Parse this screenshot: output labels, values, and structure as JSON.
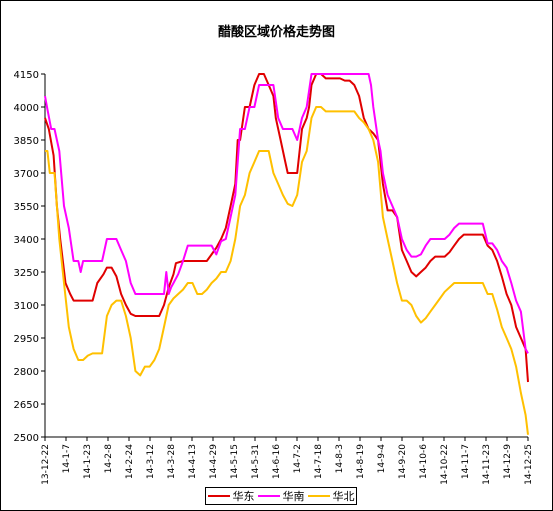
{
  "chart_data": {
    "type": "line",
    "title": "醋酸区域价格走势图",
    "xlabel": "",
    "ylabel": "",
    "ylim": [
      2500,
      4150
    ],
    "yticks": [
      2500,
      2650,
      2800,
      2950,
      3100,
      3250,
      3400,
      3550,
      3700,
      3850,
      4000,
      4150
    ],
    "grid": false,
    "legend_position": "bottom",
    "x_tick_labels": [
      "13-12-22",
      "14-1-7",
      "14-1-23",
      "14-2-8",
      "14-2-24",
      "14-3-12",
      "14-3-28",
      "14-4-13",
      "14-4-29",
      "14-5-15",
      "14-5-31",
      "14-6-16",
      "14-7-2",
      "14-7-18",
      "14-8-3",
      "14-8-19",
      "14-9-4",
      "14-9-20",
      "14-10-6",
      "14-10-22",
      "14-11-7",
      "14-11-23",
      "14-12-9",
      "14-12-25"
    ],
    "series": [
      {
        "name": "华东",
        "color": "#e00000",
        "points": [
          [
            0,
            3950
          ],
          [
            1.6,
            3900
          ],
          [
            3.6,
            3780
          ],
          [
            5,
            3550
          ],
          [
            6.4,
            3400
          ],
          [
            8.6,
            3200
          ],
          [
            10.6,
            3150
          ],
          [
            12,
            3120
          ],
          [
            14,
            3120
          ],
          [
            20,
            3120
          ],
          [
            22,
            3200
          ],
          [
            24.6,
            3240
          ],
          [
            26,
            3270
          ],
          [
            28,
            3270
          ],
          [
            30,
            3230
          ],
          [
            32,
            3150
          ],
          [
            34,
            3100
          ],
          [
            36,
            3060
          ],
          [
            38,
            3050
          ],
          [
            42,
            3050
          ],
          [
            48,
            3050
          ],
          [
            50,
            3100
          ],
          [
            52,
            3180
          ],
          [
            54,
            3240
          ],
          [
            55,
            3290
          ],
          [
            58,
            3300
          ],
          [
            60,
            3300
          ],
          [
            64,
            3300
          ],
          [
            66,
            3300
          ],
          [
            68,
            3300
          ],
          [
            70,
            3330
          ],
          [
            72,
            3360
          ],
          [
            74,
            3400
          ],
          [
            76,
            3450
          ],
          [
            78,
            3550
          ],
          [
            80,
            3650
          ],
          [
            81,
            3850
          ],
          [
            82,
            3850
          ],
          [
            84,
            4000
          ],
          [
            86,
            4000
          ],
          [
            88,
            4100
          ],
          [
            90,
            4150
          ],
          [
            92,
            4150
          ],
          [
            94,
            4100
          ],
          [
            96,
            4050
          ],
          [
            97,
            3950
          ],
          [
            99,
            3850
          ],
          [
            101,
            3750
          ],
          [
            102,
            3700
          ],
          [
            104,
            3700
          ],
          [
            106,
            3700
          ],
          [
            108,
            3900
          ],
          [
            110,
            3950
          ],
          [
            111,
            4000
          ],
          [
            112,
            4100
          ],
          [
            114,
            4150
          ],
          [
            116,
            4150
          ],
          [
            118,
            4130
          ],
          [
            120,
            4130
          ],
          [
            122,
            4130
          ],
          [
            124,
            4130
          ],
          [
            126,
            4120
          ],
          [
            128,
            4120
          ],
          [
            130,
            4100
          ],
          [
            132,
            4050
          ],
          [
            134,
            3950
          ],
          [
            136,
            3900
          ],
          [
            138,
            3880
          ],
          [
            140,
            3850
          ],
          [
            141,
            3750
          ],
          [
            142,
            3650
          ],
          [
            144,
            3530
          ],
          [
            146,
            3530
          ],
          [
            148,
            3500
          ],
          [
            150,
            3350
          ],
          [
            152,
            3300
          ],
          [
            154,
            3250
          ],
          [
            156,
            3230
          ],
          [
            158,
            3250
          ],
          [
            160,
            3270
          ],
          [
            162,
            3300
          ],
          [
            164,
            3320
          ],
          [
            166,
            3320
          ],
          [
            168,
            3320
          ],
          [
            170,
            3340
          ],
          [
            172,
            3370
          ],
          [
            174,
            3400
          ],
          [
            176,
            3420
          ],
          [
            178,
            3420
          ],
          [
            180,
            3420
          ],
          [
            182,
            3420
          ],
          [
            184,
            3420
          ],
          [
            186,
            3370
          ],
          [
            188,
            3350
          ],
          [
            190,
            3300
          ],
          [
            192,
            3230
          ],
          [
            194,
            3150
          ],
          [
            196,
            3100
          ],
          [
            198,
            3000
          ],
          [
            200,
            2950
          ],
          [
            202,
            2900
          ],
          [
            203,
            2750
          ]
        ]
      },
      {
        "name": "华南",
        "color": "#ff00ff",
        "points": [
          [
            0,
            4050
          ],
          [
            1,
            3990
          ],
          [
            2.6,
            3900
          ],
          [
            4,
            3900
          ],
          [
            6,
            3800
          ],
          [
            8,
            3550
          ],
          [
            10,
            3450
          ],
          [
            12,
            3300
          ],
          [
            14,
            3300
          ],
          [
            15,
            3250
          ],
          [
            16,
            3300
          ],
          [
            18,
            3300
          ],
          [
            24,
            3300
          ],
          [
            26,
            3400
          ],
          [
            30,
            3400
          ],
          [
            32,
            3350
          ],
          [
            34,
            3300
          ],
          [
            36,
            3200
          ],
          [
            38,
            3150
          ],
          [
            42,
            3150
          ],
          [
            46,
            3150
          ],
          [
            50,
            3150
          ],
          [
            51,
            3250
          ],
          [
            52,
            3150
          ],
          [
            53,
            3180
          ],
          [
            54,
            3200
          ],
          [
            56,
            3240
          ],
          [
            58,
            3300
          ],
          [
            60,
            3370
          ],
          [
            64,
            3370
          ],
          [
            70,
            3370
          ],
          [
            72,
            3330
          ],
          [
            74,
            3390
          ],
          [
            76,
            3400
          ],
          [
            78,
            3500
          ],
          [
            80,
            3600
          ],
          [
            82,
            3900
          ],
          [
            84,
            3900
          ],
          [
            86,
            4000
          ],
          [
            88,
            4000
          ],
          [
            90,
            4100
          ],
          [
            92,
            4100
          ],
          [
            96,
            4100
          ],
          [
            98,
            3950
          ],
          [
            100,
            3900
          ],
          [
            102,
            3900
          ],
          [
            104,
            3900
          ],
          [
            106,
            3850
          ],
          [
            108,
            3950
          ],
          [
            110,
            4000
          ],
          [
            112,
            4150
          ],
          [
            114,
            4150
          ],
          [
            120,
            4150
          ],
          [
            130,
            4150
          ],
          [
            136,
            4150
          ],
          [
            137,
            4100
          ],
          [
            138,
            4000
          ],
          [
            140,
            3850
          ],
          [
            141,
            3800
          ],
          [
            142,
            3700
          ],
          [
            144,
            3600
          ],
          [
            146,
            3550
          ],
          [
            148,
            3500
          ],
          [
            150,
            3400
          ],
          [
            152,
            3350
          ],
          [
            154,
            3320
          ],
          [
            156,
            3320
          ],
          [
            158,
            3330
          ],
          [
            160,
            3370
          ],
          [
            162,
            3400
          ],
          [
            164,
            3400
          ],
          [
            168,
            3400
          ],
          [
            170,
            3420
          ],
          [
            172,
            3450
          ],
          [
            174,
            3470
          ],
          [
            176,
            3470
          ],
          [
            180,
            3470
          ],
          [
            184,
            3470
          ],
          [
            186,
            3380
          ],
          [
            188,
            3380
          ],
          [
            190,
            3350
          ],
          [
            192,
            3300
          ],
          [
            194,
            3270
          ],
          [
            196,
            3200
          ],
          [
            198,
            3120
          ],
          [
            200,
            3070
          ],
          [
            202,
            2900
          ],
          [
            203,
            2880
          ]
        ]
      },
      {
        "name": "华北",
        "color": "#ffc000",
        "points": [
          [
            0,
            3800
          ],
          [
            1,
            3800
          ],
          [
            2,
            3700
          ],
          [
            4,
            3700
          ],
          [
            6,
            3400
          ],
          [
            8,
            3200
          ],
          [
            10,
            3000
          ],
          [
            12,
            2900
          ],
          [
            14,
            2850
          ],
          [
            16,
            2850
          ],
          [
            18,
            2870
          ],
          [
            20,
            2880
          ],
          [
            24,
            2880
          ],
          [
            26,
            3050
          ],
          [
            28,
            3100
          ],
          [
            30,
            3120
          ],
          [
            32,
            3120
          ],
          [
            34,
            3050
          ],
          [
            36,
            2950
          ],
          [
            38,
            2800
          ],
          [
            40,
            2780
          ],
          [
            42,
            2820
          ],
          [
            44,
            2820
          ],
          [
            46,
            2850
          ],
          [
            48,
            2900
          ],
          [
            50,
            3000
          ],
          [
            52,
            3100
          ],
          [
            54,
            3130
          ],
          [
            56,
            3150
          ],
          [
            58,
            3170
          ],
          [
            60,
            3200
          ],
          [
            62,
            3200
          ],
          [
            64,
            3150
          ],
          [
            66,
            3150
          ],
          [
            68,
            3170
          ],
          [
            70,
            3200
          ],
          [
            72,
            3220
          ],
          [
            74,
            3250
          ],
          [
            76,
            3250
          ],
          [
            78,
            3300
          ],
          [
            80,
            3400
          ],
          [
            82,
            3550
          ],
          [
            84,
            3600
          ],
          [
            86,
            3700
          ],
          [
            88,
            3750
          ],
          [
            90,
            3800
          ],
          [
            92,
            3800
          ],
          [
            94,
            3800
          ],
          [
            96,
            3700
          ],
          [
            98,
            3650
          ],
          [
            100,
            3600
          ],
          [
            102,
            3560
          ],
          [
            104,
            3550
          ],
          [
            106,
            3600
          ],
          [
            108,
            3750
          ],
          [
            110,
            3800
          ],
          [
            112,
            3950
          ],
          [
            114,
            4000
          ],
          [
            116,
            4000
          ],
          [
            118,
            3980
          ],
          [
            120,
            3980
          ],
          [
            124,
            3980
          ],
          [
            126,
            3980
          ],
          [
            128,
            3980
          ],
          [
            130,
            3980
          ],
          [
            132,
            3950
          ],
          [
            134,
            3930
          ],
          [
            136,
            3900
          ],
          [
            138,
            3850
          ],
          [
            140,
            3750
          ],
          [
            142,
            3500
          ],
          [
            144,
            3400
          ],
          [
            146,
            3300
          ],
          [
            148,
            3200
          ],
          [
            150,
            3120
          ],
          [
            152,
            3120
          ],
          [
            154,
            3100
          ],
          [
            156,
            3050
          ],
          [
            158,
            3020
          ],
          [
            160,
            3040
          ],
          [
            162,
            3070
          ],
          [
            164,
            3100
          ],
          [
            166,
            3130
          ],
          [
            168,
            3160
          ],
          [
            170,
            3180
          ],
          [
            172,
            3200
          ],
          [
            176,
            3200
          ],
          [
            180,
            3200
          ],
          [
            184,
            3200
          ],
          [
            186,
            3150
          ],
          [
            188,
            3150
          ],
          [
            190,
            3080
          ],
          [
            192,
            3000
          ],
          [
            194,
            2950
          ],
          [
            196,
            2900
          ],
          [
            198,
            2820
          ],
          [
            200,
            2700
          ],
          [
            202,
            2600
          ],
          [
            203,
            2510
          ]
        ]
      }
    ]
  }
}
